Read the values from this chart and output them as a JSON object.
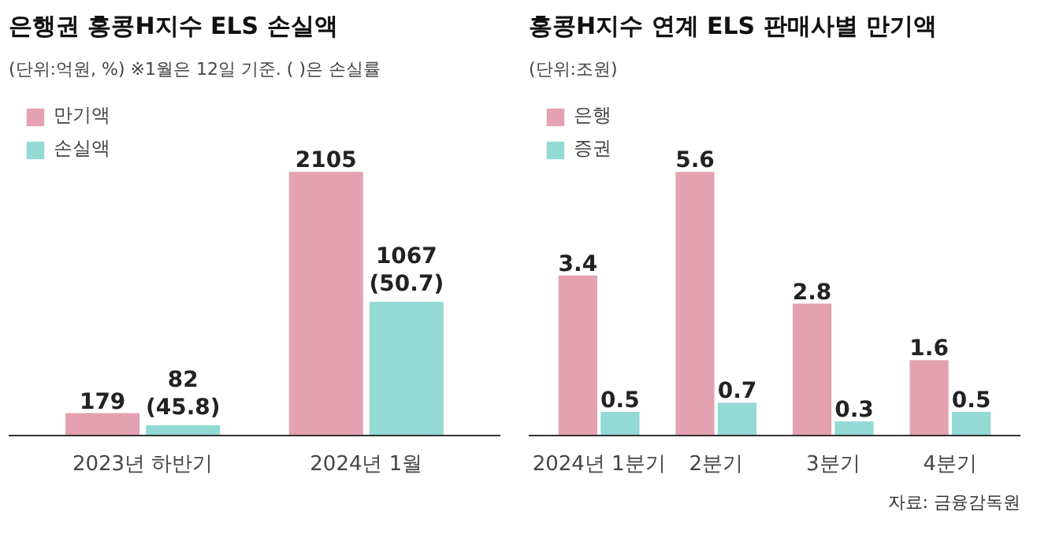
{
  "chart_data": [
    {
      "type": "bar",
      "title": "은행권 홍콩H지수 ELS 손실액",
      "subtitle": "(단위:억원, %) ※1월은 12일 기준. ( )은 손실률",
      "categories": [
        "2023년 하반기",
        "2024년 1월"
      ],
      "series": [
        {
          "name": "만기액",
          "color": "#e3a1b1",
          "values": [
            179,
            2105
          ],
          "value_labels": [
            "179",
            "2105"
          ]
        },
        {
          "name": "손실액",
          "color": "#93d9d4",
          "values": [
            82,
            1067
          ],
          "value_labels": [
            "82\n(45.8)",
            "1067\n(50.7)"
          ]
        }
      ],
      "legend": "top left",
      "tick_labels": "x",
      "grid": false
    },
    {
      "type": "bar",
      "title": "홍콩H지수 연계 ELS 판매사별 만기액",
      "subtitle": "(단위:조원)",
      "categories": [
        "2024년 1분기",
        "2분기",
        "3분기",
        "4분기"
      ],
      "series": [
        {
          "name": "은행",
          "color": "#e3a1b1",
          "values": [
            3.4,
            5.6,
            2.8,
            1.6
          ]
        },
        {
          "name": "증권",
          "color": "#93d9d4",
          "values": [
            0.5,
            0.7,
            0.3,
            0.5
          ]
        }
      ],
      "data_labels": true,
      "legend": "top left",
      "tick_labels": "x",
      "grid": false,
      "annotations": [
        "자료: 금융감독원"
      ]
    }
  ]
}
